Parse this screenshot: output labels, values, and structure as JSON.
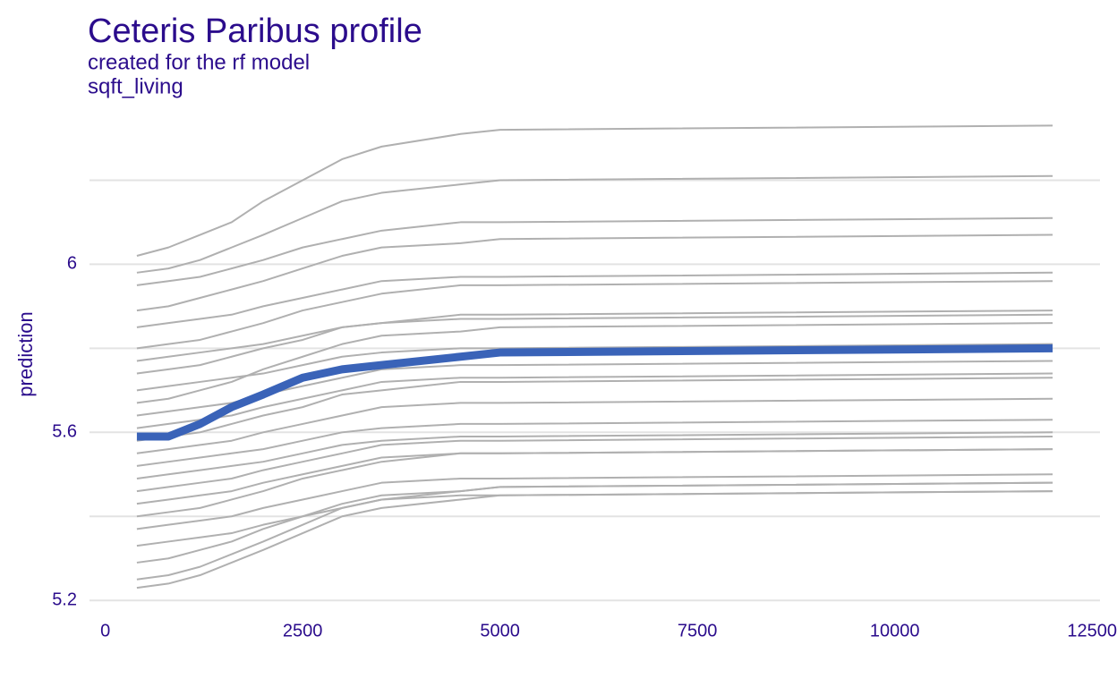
{
  "chart_data": {
    "type": "line",
    "title": "Ceteris Paribus profile",
    "subtitle": "created for the rf model",
    "variable": "sqft_living",
    "ylabel": "prediction",
    "x": [
      400,
      800,
      1200,
      1600,
      2000,
      2500,
      3000,
      3500,
      4500,
      5000,
      12000
    ],
    "xlim": [
      -200,
      12600
    ],
    "xticks": [
      0,
      2500,
      5000,
      7500,
      10000,
      12500
    ],
    "ylim": [
      5.16,
      6.35
    ],
    "yticks": [
      5.2,
      5.6,
      6.0
    ],
    "yminor": [
      5.4,
      5.8,
      6.2
    ],
    "grid": true,
    "profile_color": "#b0b0b0",
    "series": [
      {
        "values": [
          6.02,
          6.04,
          6.07,
          6.1,
          6.15,
          6.2,
          6.25,
          6.28,
          6.31,
          6.32,
          6.33
        ]
      },
      {
        "values": [
          5.98,
          5.99,
          6.01,
          6.04,
          6.07,
          6.11,
          6.15,
          6.17,
          6.19,
          6.2,
          6.21
        ]
      },
      {
        "values": [
          5.95,
          5.96,
          5.97,
          5.99,
          6.01,
          6.04,
          6.06,
          6.08,
          6.1,
          6.1,
          6.11
        ]
      },
      {
        "values": [
          5.89,
          5.9,
          5.92,
          5.94,
          5.96,
          5.99,
          6.02,
          6.04,
          6.05,
          6.06,
          6.07
        ]
      },
      {
        "values": [
          5.85,
          5.86,
          5.87,
          5.88,
          5.9,
          5.92,
          5.94,
          5.96,
          5.97,
          5.97,
          5.98
        ]
      },
      {
        "values": [
          5.8,
          5.81,
          5.82,
          5.84,
          5.86,
          5.89,
          5.91,
          5.93,
          5.95,
          5.95,
          5.96
        ]
      },
      {
        "values": [
          5.77,
          5.78,
          5.79,
          5.8,
          5.81,
          5.83,
          5.85,
          5.86,
          5.87,
          5.87,
          5.88
        ]
      },
      {
        "values": [
          5.74,
          5.75,
          5.76,
          5.78,
          5.8,
          5.82,
          5.85,
          5.86,
          5.88,
          5.88,
          5.89
        ]
      },
      {
        "values": [
          5.7,
          5.71,
          5.72,
          5.73,
          5.74,
          5.76,
          5.78,
          5.79,
          5.8,
          5.8,
          5.81
        ]
      },
      {
        "values": [
          5.67,
          5.68,
          5.7,
          5.72,
          5.75,
          5.78,
          5.81,
          5.83,
          5.84,
          5.85,
          5.86
        ]
      },
      {
        "values": [
          5.64,
          5.65,
          5.66,
          5.67,
          5.69,
          5.71,
          5.73,
          5.75,
          5.76,
          5.76,
          5.77
        ]
      },
      {
        "values": [
          5.61,
          5.62,
          5.63,
          5.64,
          5.66,
          5.68,
          5.7,
          5.72,
          5.73,
          5.73,
          5.74
        ]
      },
      {
        "values": [
          5.58,
          5.59,
          5.6,
          5.62,
          5.64,
          5.66,
          5.69,
          5.7,
          5.72,
          5.72,
          5.73
        ]
      },
      {
        "values": [
          5.55,
          5.56,
          5.57,
          5.58,
          5.6,
          5.62,
          5.64,
          5.66,
          5.67,
          5.67,
          5.68
        ]
      },
      {
        "values": [
          5.52,
          5.53,
          5.54,
          5.55,
          5.56,
          5.58,
          5.6,
          5.61,
          5.62,
          5.62,
          5.63
        ]
      },
      {
        "values": [
          5.49,
          5.5,
          5.51,
          5.52,
          5.53,
          5.55,
          5.57,
          5.58,
          5.59,
          5.59,
          5.6
        ]
      },
      {
        "values": [
          5.46,
          5.47,
          5.48,
          5.49,
          5.51,
          5.53,
          5.55,
          5.57,
          5.58,
          5.58,
          5.59
        ]
      },
      {
        "values": [
          5.43,
          5.44,
          5.45,
          5.46,
          5.48,
          5.5,
          5.52,
          5.54,
          5.55,
          5.55,
          5.56
        ]
      },
      {
        "values": [
          5.4,
          5.41,
          5.42,
          5.44,
          5.46,
          5.49,
          5.51,
          5.53,
          5.55,
          5.55,
          5.56
        ]
      },
      {
        "values": [
          5.37,
          5.38,
          5.39,
          5.4,
          5.42,
          5.44,
          5.46,
          5.48,
          5.49,
          5.49,
          5.5
        ]
      },
      {
        "values": [
          5.33,
          5.34,
          5.35,
          5.36,
          5.38,
          5.4,
          5.42,
          5.44,
          5.45,
          5.45,
          5.46
        ]
      },
      {
        "values": [
          5.29,
          5.3,
          5.32,
          5.34,
          5.37,
          5.4,
          5.43,
          5.45,
          5.46,
          5.47,
          5.48
        ]
      },
      {
        "values": [
          5.25,
          5.26,
          5.28,
          5.31,
          5.34,
          5.38,
          5.42,
          5.44,
          5.46,
          5.47,
          5.48
        ]
      },
      {
        "values": [
          5.23,
          5.24,
          5.26,
          5.29,
          5.32,
          5.36,
          5.4,
          5.42,
          5.44,
          5.45,
          5.46
        ]
      }
    ],
    "mean_color": "#3a63b8",
    "mean": [
      5.59,
      5.59,
      5.62,
      5.66,
      5.69,
      5.73,
      5.75,
      5.76,
      5.78,
      5.79,
      5.8
    ]
  }
}
